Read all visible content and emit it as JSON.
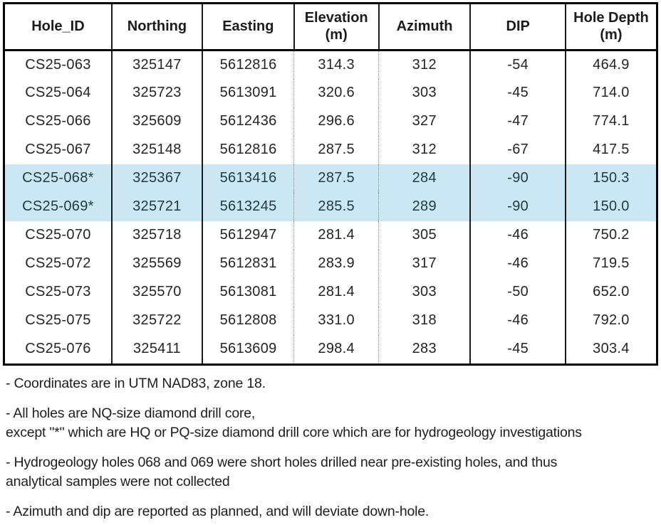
{
  "table": {
    "columns": [
      {
        "label": "Hole_ID",
        "sub": ""
      },
      {
        "label": "Northing",
        "sub": ""
      },
      {
        "label": "Easting",
        "sub": ""
      },
      {
        "label": "Elevation",
        "sub": "(m)"
      },
      {
        "label": "Azimuth",
        "sub": ""
      },
      {
        "label": "DIP",
        "sub": ""
      },
      {
        "label": "Hole Depth",
        "sub": "(m)"
      }
    ],
    "rows": [
      {
        "hole_id": "CS25-063",
        "northing": "325147",
        "easting": "5612816",
        "elevation": "314.3",
        "azimuth": "312",
        "dip": "-54",
        "depth": "464.9",
        "highlighted": false
      },
      {
        "hole_id": "CS25-064",
        "northing": "325723",
        "easting": "5613091",
        "elevation": "320.6",
        "azimuth": "303",
        "dip": "-45",
        "depth": "714.0",
        "highlighted": false
      },
      {
        "hole_id": "CS25-066",
        "northing": "325609",
        "easting": "5612436",
        "elevation": "296.6",
        "azimuth": "327",
        "dip": "-47",
        "depth": "774.1",
        "highlighted": false
      },
      {
        "hole_id": "CS25-067",
        "northing": "325148",
        "easting": "5612816",
        "elevation": "287.5",
        "azimuth": "312",
        "dip": "-67",
        "depth": "417.5",
        "highlighted": false
      },
      {
        "hole_id": "CS25-068*",
        "northing": "325367",
        "easting": "5613416",
        "elevation": "287.5",
        "azimuth": "284",
        "dip": "-90",
        "depth": "150.3",
        "highlighted": true
      },
      {
        "hole_id": "CS25-069*",
        "northing": "325721",
        "easting": "5613245",
        "elevation": "285.5",
        "azimuth": "289",
        "dip": "-90",
        "depth": "150.0",
        "highlighted": true
      },
      {
        "hole_id": "CS25-070",
        "northing": "325718",
        "easting": "5612947",
        "elevation": "281.4",
        "azimuth": "305",
        "dip": "-46",
        "depth": "750.2",
        "highlighted": false
      },
      {
        "hole_id": "CS25-072",
        "northing": "325569",
        "easting": "5612831",
        "elevation": "283.9",
        "azimuth": "317",
        "dip": "-46",
        "depth": "719.5",
        "highlighted": false
      },
      {
        "hole_id": "CS25-073",
        "northing": "325570",
        "easting": "5613081",
        "elevation": "281.4",
        "azimuth": "303",
        "dip": "-50",
        "depth": "652.0",
        "highlighted": false
      },
      {
        "hole_id": "CS25-075",
        "northing": "325722",
        "easting": "5612808",
        "elevation": "331.0",
        "azimuth": "318",
        "dip": "-46",
        "depth": "792.0",
        "highlighted": false
      },
      {
        "hole_id": "CS25-076",
        "northing": "325411",
        "easting": "5613609",
        "elevation": "298.4",
        "azimuth": "283",
        "dip": "-45",
        "depth": "303.4",
        "highlighted": false
      }
    ]
  },
  "footnotes": [
    [
      "- Coordinates are in UTM NAD83, zone 18."
    ],
    [
      "- All holes are NQ-size diamond drill core,",
      "except \"*\" which are HQ or PQ-size diamond drill core which are for hydrogeology investigations"
    ],
    [
      "- Hydrogeology holes 068 and 069 were short holes drilled near pre-existing holes, and thus",
      "analytical samples were not collected"
    ],
    [
      "- Azimuth and dip are reported as planned, and will deviate down-hole."
    ]
  ],
  "colors": {
    "highlight_row_background": "#cbe7f3",
    "table_border": "#000000",
    "body_text": "#242424"
  }
}
